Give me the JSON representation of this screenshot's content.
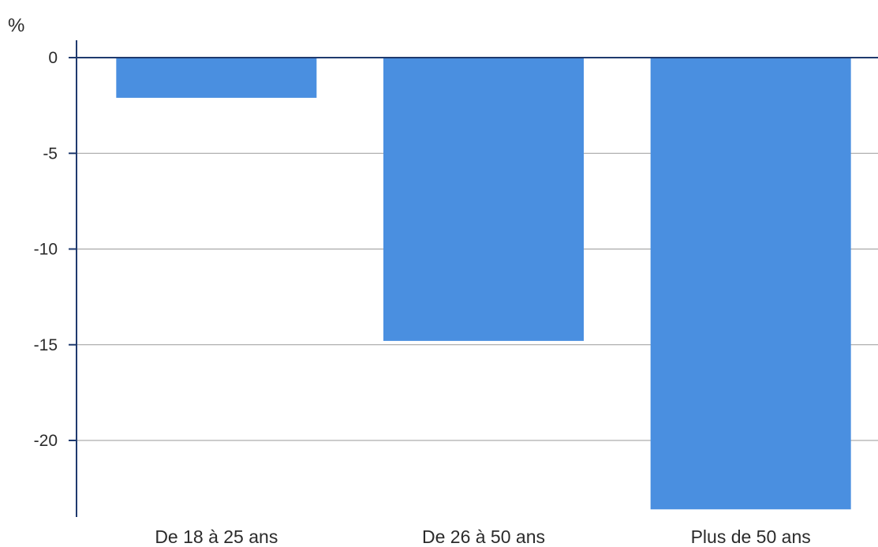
{
  "chart_data": {
    "type": "bar",
    "unit_label": "%",
    "categories": [
      "De 18 à 25 ans",
      "De 26 à 50 ans",
      "Plus de 50 ans"
    ],
    "values": [
      -2.1,
      -14.8,
      -23.6
    ],
    "yticks": [
      0,
      -5,
      -10,
      -15,
      -20
    ],
    "yticks_text": [
      "0",
      "-5",
      "-10",
      "-15",
      "-20"
    ],
    "ylim": [
      -24,
      0
    ],
    "grid": true,
    "legend": "none",
    "colors": {
      "bar": "#4a8fe0",
      "axis": "#1f3a6e",
      "grid": "#9a9a9a"
    }
  }
}
